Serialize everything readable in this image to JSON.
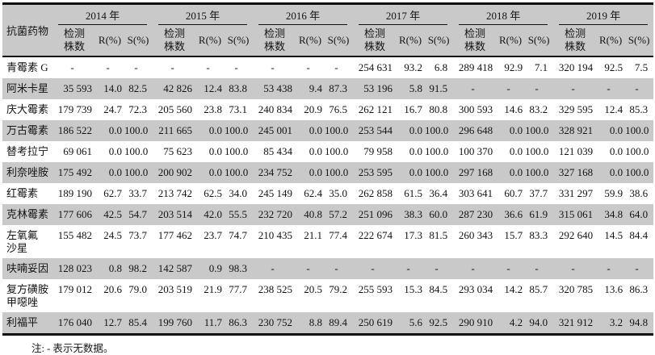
{
  "table": {
    "drug_col_header": "抗菌药物",
    "years": [
      "2014 年",
      "2015 年",
      "2016 年",
      "2017 年",
      "2018 年",
      "2019 年"
    ],
    "sub_headers": {
      "count": "检测\n株数",
      "r": "R(%)",
      "s": "S(%)"
    },
    "rows": [
      {
        "drug": "青霉素 G",
        "cells": [
          [
            "-",
            "-",
            "-"
          ],
          [
            "-",
            "-",
            "-"
          ],
          [
            "-",
            "-",
            "-"
          ],
          [
            "254 631",
            "93.2",
            "6.8"
          ],
          [
            "289 418",
            "92.9",
            "7.1"
          ],
          [
            "320 194",
            "92.5",
            "7.5"
          ]
        ]
      },
      {
        "drug": "阿米卡星",
        "cells": [
          [
            "35 593",
            "14.0",
            "82.5"
          ],
          [
            "42 826",
            "12.4",
            "83.8"
          ],
          [
            "53 438",
            "9.4",
            "87.3"
          ],
          [
            "53 196",
            "5.8",
            "91.5"
          ],
          [
            "-",
            "-",
            "-"
          ],
          [
            "-",
            "-",
            "-"
          ]
        ]
      },
      {
        "drug": "庆大霉素",
        "cells": [
          [
            "179 739",
            "24.7",
            "72.3"
          ],
          [
            "205 560",
            "23.8",
            "73.1"
          ],
          [
            "240 834",
            "20.9",
            "76.5"
          ],
          [
            "262 121",
            "16.7",
            "80.8"
          ],
          [
            "300 593",
            "14.6",
            "83.2"
          ],
          [
            "329 595",
            "12.4",
            "85.3"
          ]
        ]
      },
      {
        "drug": "万古霉素",
        "cells": [
          [
            "186 522",
            "0.0",
            "100.0"
          ],
          [
            "211 665",
            "0.0",
            "100.0"
          ],
          [
            "245 001",
            "0.0",
            "100.0"
          ],
          [
            "253 544",
            "0.0",
            "100.0"
          ],
          [
            "296 648",
            "0.0",
            "100.0"
          ],
          [
            "328 921",
            "0.0",
            "100.0"
          ]
        ]
      },
      {
        "drug": "替考拉宁",
        "cells": [
          [
            "69 061",
            "0.0",
            "100.0"
          ],
          [
            "75 623",
            "0.0",
            "100.0"
          ],
          [
            "85 434",
            "0.0",
            "100.0"
          ],
          [
            "79 958",
            "0.0",
            "100.0"
          ],
          [
            "100 370",
            "0.0",
            "100.0"
          ],
          [
            "121 039",
            "0.0",
            "100.0"
          ]
        ]
      },
      {
        "drug": "利奈唑胺",
        "cells": [
          [
            "175 492",
            "0.0",
            "100.0"
          ],
          [
            "200 902",
            "0.0",
            "100.0"
          ],
          [
            "234 752",
            "0.0",
            "100.0"
          ],
          [
            "253 595",
            "0.0",
            "100.0"
          ],
          [
            "297 168",
            "0.0",
            "100.0"
          ],
          [
            "327 168",
            "0.0",
            "100.0"
          ]
        ]
      },
      {
        "drug": "红霉素",
        "cells": [
          [
            "189 190",
            "62.7",
            "33.7"
          ],
          [
            "213 742",
            "62.5",
            "34.0"
          ],
          [
            "245 149",
            "62.4",
            "35.0"
          ],
          [
            "262 858",
            "61.5",
            "36.4"
          ],
          [
            "303 641",
            "60.7",
            "37.7"
          ],
          [
            "331 297",
            "59.9",
            "38.6"
          ]
        ]
      },
      {
        "drug": "克林霉素",
        "cells": [
          [
            "177 606",
            "42.5",
            "54.7"
          ],
          [
            "203 514",
            "42.0",
            "55.5"
          ],
          [
            "232 720",
            "40.8",
            "57.2"
          ],
          [
            "251 096",
            "38.3",
            "60.0"
          ],
          [
            "287 230",
            "36.6",
            "61.9"
          ],
          [
            "315 061",
            "34.8",
            "64.0"
          ]
        ]
      },
      {
        "drug": "左氧氟\n沙星",
        "cells": [
          [
            "155 482",
            "24.5",
            "73.7"
          ],
          [
            "177 462",
            "23.7",
            "74.7"
          ],
          [
            "210 435",
            "21.1",
            "77.4"
          ],
          [
            "222 674",
            "17.3",
            "81.5"
          ],
          [
            "260 343",
            "15.7",
            "83.3"
          ],
          [
            "292 640",
            "14.5",
            "84.4"
          ]
        ]
      },
      {
        "drug": "呋喃妥因",
        "cells": [
          [
            "128 023",
            "0.8",
            "98.2"
          ],
          [
            "142 587",
            "0.9",
            "98.3"
          ],
          [
            "-",
            "-",
            "-"
          ],
          [
            "-",
            "-",
            "-"
          ],
          [
            "-",
            "-",
            "-"
          ],
          [
            "-",
            "-",
            "-"
          ]
        ]
      },
      {
        "drug": "复方磺胺\n甲噁唑",
        "cells": [
          [
            "179 012",
            "20.6",
            "79.0"
          ],
          [
            "203 519",
            "21.9",
            "77.7"
          ],
          [
            "238 525",
            "20.5",
            "79.2"
          ],
          [
            "255 593",
            "15.3",
            "84.5"
          ],
          [
            "293 034",
            "14.2",
            "85.7"
          ],
          [
            "320 785",
            "13.6",
            "86.3"
          ]
        ]
      },
      {
        "drug": "利福平",
        "cells": [
          [
            "176 040",
            "12.7",
            "85.4"
          ],
          [
            "199 760",
            "11.7",
            "86.3"
          ],
          [
            "230 752",
            "8.8",
            "89.4"
          ],
          [
            "250 619",
            "5.6",
            "92.5"
          ],
          [
            "290 910",
            "4.2",
            "94.0"
          ],
          [
            "321 912",
            "3.2",
            "94.8"
          ]
        ]
      }
    ],
    "note": "注: - 表示无数据。"
  },
  "colors": {
    "band_gray": "#c9c9c9",
    "rule_black": "#101010"
  }
}
